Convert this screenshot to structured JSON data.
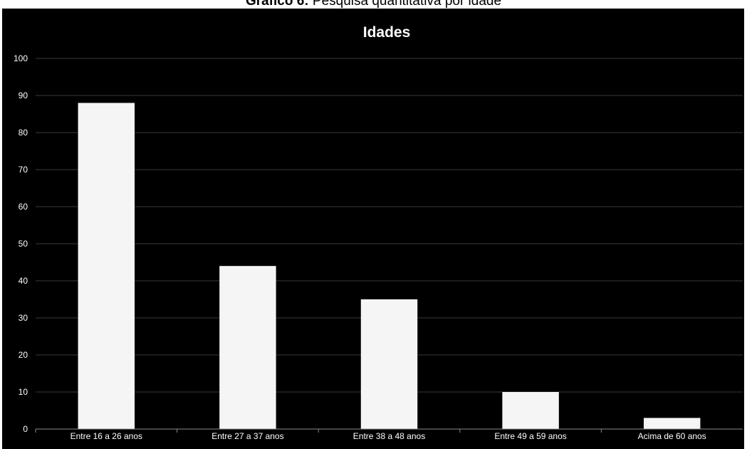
{
  "caption": {
    "label": "Gráfico 6:",
    "text": "Pesquisa quantitativa por idade"
  },
  "colors": {
    "background": "#000000",
    "bar": "#f5f5f5",
    "grid": "#3a3a3a",
    "text": "#ffffff"
  },
  "chart_data": {
    "type": "bar",
    "title": "Idades",
    "xlabel": "",
    "ylabel": "",
    "categories": [
      "Entre 16 a 26 anos",
      "Entre 27 a 37 anos",
      "Entre 38 a 48 anos",
      "Entre 49 a 59 anos",
      "Acima de 60 anos"
    ],
    "values": [
      88,
      44,
      35,
      10,
      3
    ],
    "ylim": [
      0,
      100
    ],
    "yticks": [
      0,
      10,
      20,
      30,
      40,
      50,
      60,
      70,
      80,
      90,
      100
    ],
    "grid": true,
    "legend": "none"
  }
}
